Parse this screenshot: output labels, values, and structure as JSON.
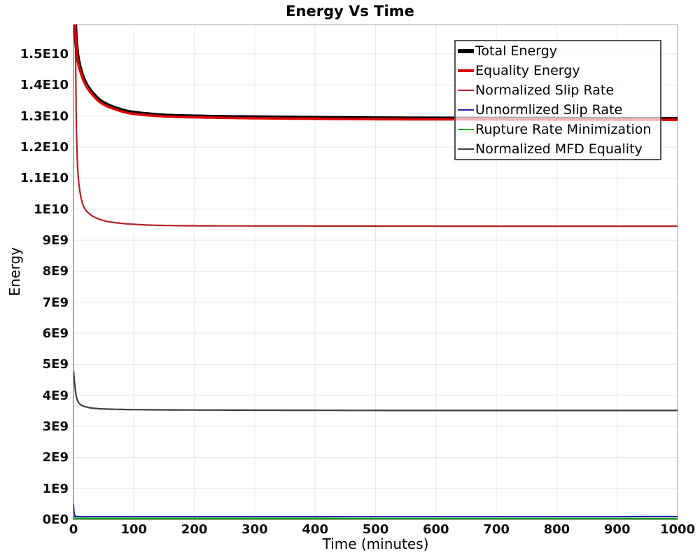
{
  "page": {
    "background": "#ffffff"
  },
  "chart_data": {
    "type": "line",
    "title": "Energy Vs Time",
    "xlabel": "Time (minutes)",
    "ylabel": "Energy",
    "grid": true,
    "legend_position": "top-right",
    "xlim": [
      0,
      1000
    ],
    "ylim_e9": [
      0,
      15.95
    ],
    "value_unit": "1e9",
    "x_ticks": [
      0,
      100,
      200,
      300,
      400,
      500,
      600,
      700,
      800,
      900,
      1000
    ],
    "y_ticks": [
      {
        "value": 0,
        "label": "0E0"
      },
      {
        "value": 1,
        "label": "1E9"
      },
      {
        "value": 2,
        "label": "2E9"
      },
      {
        "value": 3,
        "label": "3E9"
      },
      {
        "value": 4,
        "label": "4E9"
      },
      {
        "value": 5,
        "label": "5E9"
      },
      {
        "value": 6,
        "label": "6E9"
      },
      {
        "value": 7,
        "label": "7E9"
      },
      {
        "value": 8,
        "label": "8E9"
      },
      {
        "value": 9,
        "label": "9E9"
      },
      {
        "value": 10,
        "label": "1E10"
      },
      {
        "value": 11,
        "label": "1.1E10"
      },
      {
        "value": 12,
        "label": "1.2E10"
      },
      {
        "value": 13,
        "label": "1.3E10"
      },
      {
        "value": 14,
        "label": "1.4E10"
      },
      {
        "value": 15,
        "label": "1.5E10"
      }
    ],
    "grid_color": "#e8e8e8",
    "border_color": "#b6b6b6",
    "spine_color": "#8c8c8c",
    "series": [
      {
        "name": "Total Energy",
        "color": "#000000",
        "line_width": 5.5,
        "points": [
          [
            0,
            18.6
          ],
          [
            2,
            16.4
          ],
          [
            5,
            15.25
          ],
          [
            10,
            14.62
          ],
          [
            20,
            14.06
          ],
          [
            35,
            13.66
          ],
          [
            50,
            13.42
          ],
          [
            75,
            13.22
          ],
          [
            100,
            13.11
          ],
          [
            150,
            13.02
          ],
          [
            200,
            12.99
          ],
          [
            300,
            12.96
          ],
          [
            500,
            12.93
          ],
          [
            700,
            12.92
          ],
          [
            1000,
            12.91
          ]
        ]
      },
      {
        "name": "Equality Energy",
        "color": "#dd0000",
        "line_width": 3.6,
        "points": [
          [
            0,
            18.45
          ],
          [
            2,
            16.3
          ],
          [
            5,
            15.15
          ],
          [
            10,
            14.55
          ],
          [
            20,
            14.0
          ],
          [
            35,
            13.61
          ],
          [
            50,
            13.37
          ],
          [
            75,
            13.18
          ],
          [
            100,
            13.07
          ],
          [
            150,
            12.99
          ],
          [
            200,
            12.96
          ],
          [
            300,
            12.93
          ],
          [
            500,
            12.9
          ],
          [
            700,
            12.89
          ],
          [
            1000,
            12.88
          ]
        ]
      },
      {
        "name": "Normalized Slip Rate",
        "color": "#b22222",
        "line_width": 2.2,
        "points": [
          [
            3,
            16.3
          ],
          [
            4,
            13.9
          ],
          [
            5,
            12.5
          ],
          [
            7,
            11.3
          ],
          [
            10,
            10.65
          ],
          [
            15,
            10.18
          ],
          [
            22,
            9.93
          ],
          [
            33,
            9.76
          ],
          [
            50,
            9.63
          ],
          [
            75,
            9.55
          ],
          [
            110,
            9.5
          ],
          [
            160,
            9.47
          ],
          [
            250,
            9.46
          ],
          [
            450,
            9.455
          ],
          [
            700,
            9.45
          ],
          [
            1000,
            9.45
          ]
        ]
      },
      {
        "name": "Unnormlized Slip Rate",
        "color": "#2323af",
        "line_width": 2,
        "points": [
          [
            0,
            0.5
          ],
          [
            1,
            0.22
          ],
          [
            3,
            0.12
          ],
          [
            8,
            0.095
          ],
          [
            50,
            0.09
          ],
          [
            1000,
            0.09
          ]
        ]
      },
      {
        "name": "Rupture Rate Minimization",
        "color": "#00a500",
        "line_width": 2,
        "points": [
          [
            0,
            0.035
          ],
          [
            1000,
            0.03
          ]
        ]
      },
      {
        "name": "Normalized MFD Equality",
        "color": "#3d3d3d",
        "line_width": 2.2,
        "points": [
          [
            0,
            4.78
          ],
          [
            2,
            4.36
          ],
          [
            4,
            4.04
          ],
          [
            6,
            3.87
          ],
          [
            9,
            3.75
          ],
          [
            14,
            3.67
          ],
          [
            20,
            3.63
          ],
          [
            30,
            3.59
          ],
          [
            50,
            3.56
          ],
          [
            90,
            3.54
          ],
          [
            150,
            3.53
          ],
          [
            300,
            3.52
          ],
          [
            600,
            3.51
          ],
          [
            1000,
            3.51
          ]
        ]
      }
    ],
    "draw_order": [
      5,
      2,
      3,
      4,
      0,
      1
    ]
  }
}
